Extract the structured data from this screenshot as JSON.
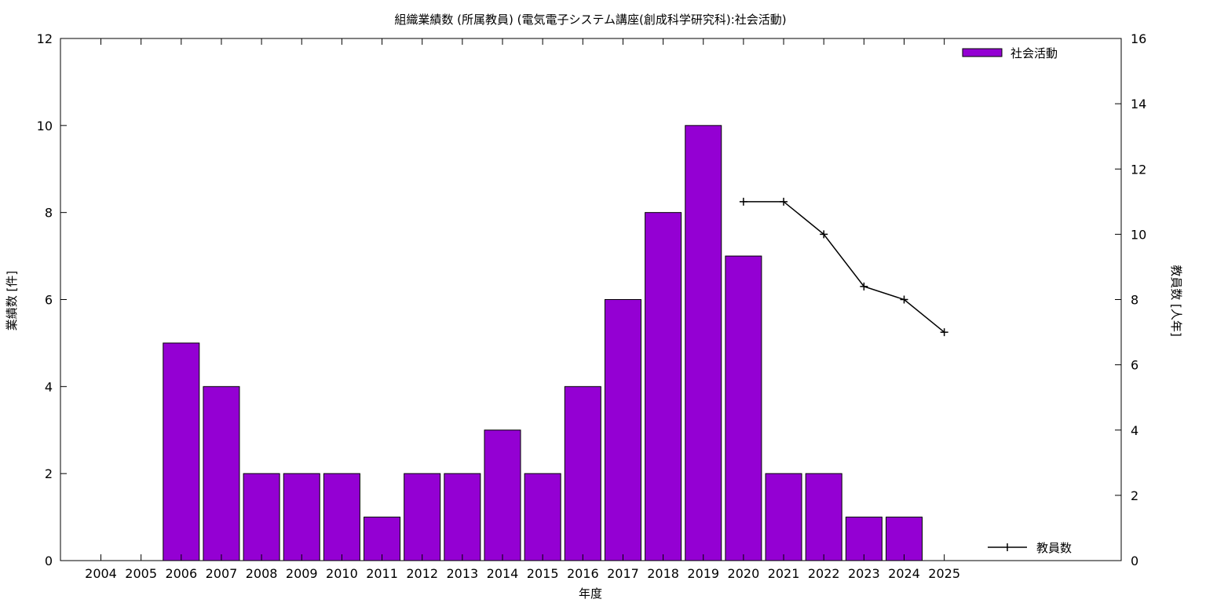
{
  "chart_data": {
    "type": "bar",
    "title": "組織業績数 (所属教員) (電気電子システム講座(創成科学研究科):社会活動)",
    "xlabel": "年度",
    "ylabel": "業績数 [件]",
    "y2label": "教員数 [人年]",
    "categories": [
      "2004",
      "2005",
      "2006",
      "2007",
      "2008",
      "2009",
      "2010",
      "2011",
      "2012",
      "2013",
      "2014",
      "2015",
      "2016",
      "2017",
      "2018",
      "2019",
      "2020",
      "2021",
      "2022",
      "2023",
      "2024",
      "2025"
    ],
    "series": [
      {
        "name": "社会活動",
        "type": "bar",
        "axis": "left",
        "color": "#9400d3",
        "values": [
          0,
          0,
          5,
          4,
          2,
          2,
          2,
          1,
          2,
          2,
          3,
          2,
          4,
          6,
          8,
          10,
          7,
          2,
          2,
          1,
          1,
          0
        ]
      },
      {
        "name": "教員数",
        "type": "line",
        "axis": "right",
        "color": "#000000",
        "values": [
          null,
          null,
          null,
          null,
          null,
          null,
          null,
          null,
          null,
          null,
          null,
          null,
          null,
          null,
          null,
          null,
          11,
          11,
          10,
          8.4,
          8,
          7
        ]
      }
    ],
    "ylim": [
      0,
      12
    ],
    "yticks": [
      "0",
      "2",
      "4",
      "6",
      "8",
      "10",
      "12"
    ],
    "y2lim": [
      0,
      16
    ],
    "y2ticks": [
      "0",
      "2",
      "4",
      "6",
      "8",
      "10",
      "12",
      "14",
      "16"
    ],
    "legend": [
      {
        "label": "社会活動",
        "position": "top-right"
      },
      {
        "label": "教員数",
        "position": "bottom-right"
      }
    ],
    "grid": false
  }
}
